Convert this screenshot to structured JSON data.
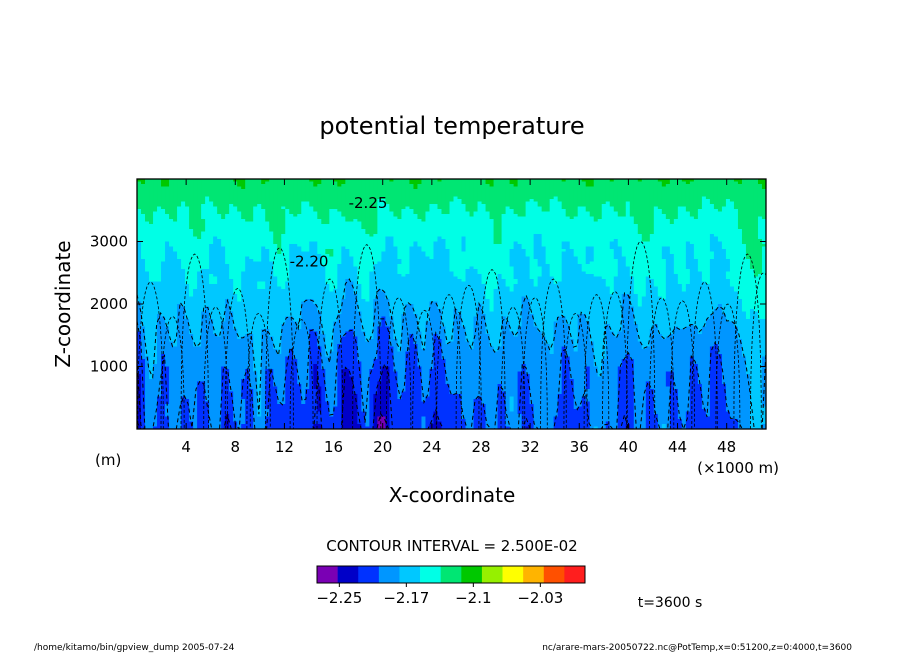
{
  "chart_data": {
    "type": "contour",
    "title": "potential temperature",
    "xlabel": "X-coordinate",
    "ylabel": "Z-coordinate",
    "x_unit": "(×1000 m)",
    "y_unit": "(m)",
    "x_ticks": [
      "4",
      "8",
      "12",
      "16",
      "20",
      "24",
      "28",
      "32",
      "36",
      "40",
      "44",
      "48"
    ],
    "x_tick_values": [
      4,
      8,
      12,
      16,
      20,
      24,
      28,
      32,
      36,
      40,
      44,
      48
    ],
    "y_ticks": [
      "1000",
      "2000",
      "3000"
    ],
    "y_tick_values": [
      1000,
      2000,
      3000
    ],
    "xlim": [
      0,
      51.2
    ],
    "ylim": [
      0,
      4000
    ],
    "contour_interval": "CONTOUR INTERVAL = 2.500E-02",
    "contour_labels": [
      {
        "text": "-2.25",
        "x": 18.8,
        "z": 3620
      },
      {
        "text": "-2.20",
        "x": 14.0,
        "z": 2680
      }
    ],
    "colorbar": {
      "levels": [
        -2.275,
        -2.25,
        -2.225,
        -2.2,
        -2.175,
        -2.15,
        -2.125,
        -2.1,
        -2.075,
        -2.05,
        -2.025,
        -2.0,
        -1.975
      ],
      "colors": [
        "#7a00b4",
        "#0000c8",
        "#0032ff",
        "#0096ff",
        "#00c8ff",
        "#00ffe6",
        "#00e673",
        "#00c800",
        "#96f000",
        "#ffff00",
        "#ffb400",
        "#ff5000",
        "#ff1e1e"
      ],
      "tick_labels": [
        "−2.25",
        "−2.17",
        "−2.1",
        "−2.03"
      ],
      "tick_values": [
        -2.25,
        -2.175,
        -2.1,
        -2.025
      ]
    },
    "time_label": "t=3600 s",
    "grid": false
  },
  "footer": {
    "left": "/home/kitamo/bin/gpview_dump  2005-07-24",
    "right": "nc/arare-mars-20050722.nc@PotTemp,x=0:51200,z=0:4000,t=3600"
  }
}
